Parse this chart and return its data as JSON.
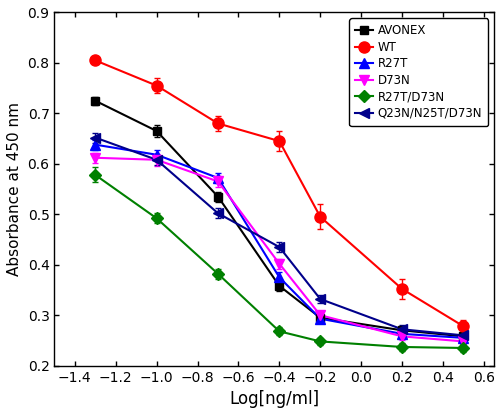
{
  "series": [
    {
      "label": "AVONEX",
      "color": "#000000",
      "marker": "s",
      "markersize": 6,
      "x": [
        -1.3,
        -1.0,
        -0.7,
        -0.4,
        -0.2,
        0.2,
        0.5
      ],
      "y": [
        0.725,
        0.665,
        0.535,
        0.358,
        0.295,
        0.27,
        0.258
      ],
      "yerr": [
        0.008,
        0.012,
        0.01,
        0.01,
        0.008,
        0.007,
        0.007
      ],
      "ec50_guess": -0.5,
      "hill_guess": 2.5
    },
    {
      "label": "WT",
      "color": "#ff0000",
      "marker": "o",
      "markersize": 8,
      "x": [
        -1.3,
        -1.0,
        -0.7,
        -0.4,
        -0.2,
        0.2,
        0.5
      ],
      "y": [
        0.805,
        0.755,
        0.68,
        0.645,
        0.495,
        0.352,
        0.278
      ],
      "yerr": [
        0.005,
        0.015,
        0.015,
        0.02,
        0.025,
        0.02,
        0.012
      ],
      "ec50_guess": 0.1,
      "hill_guess": 2.5
    },
    {
      "label": "R27T",
      "color": "#0000ff",
      "marker": "^",
      "markersize": 7,
      "x": [
        -1.3,
        -1.0,
        -0.7,
        -0.4,
        -0.2,
        0.2,
        0.5
      ],
      "y": [
        0.638,
        0.618,
        0.572,
        0.375,
        0.293,
        0.263,
        0.255
      ],
      "yerr": [
        0.01,
        0.01,
        0.01,
        0.01,
        0.008,
        0.007,
        0.006
      ],
      "ec50_guess": -0.55,
      "hill_guess": 2.5
    },
    {
      "label": "D73N",
      "color": "#ff00ff",
      "marker": "v",
      "markersize": 7,
      "x": [
        -1.3,
        -1.0,
        -0.7,
        -0.4,
        -0.2,
        0.2,
        0.5
      ],
      "y": [
        0.612,
        0.608,
        0.565,
        0.402,
        0.3,
        0.258,
        0.248
      ],
      "yerr": [
        0.01,
        0.012,
        0.01,
        0.01,
        0.007,
        0.007,
        0.006
      ],
      "ec50_guess": -0.6,
      "hill_guess": 2.5
    },
    {
      "label": "R27T/D73N",
      "color": "#008000",
      "marker": "D",
      "markersize": 6,
      "x": [
        -1.3,
        -1.0,
        -0.7,
        -0.4,
        -0.2,
        0.2,
        0.5
      ],
      "y": [
        0.578,
        0.492,
        0.382,
        0.268,
        0.248,
        0.237,
        0.235
      ],
      "yerr": [
        0.015,
        0.01,
        0.01,
        0.008,
        0.007,
        0.007,
        0.007
      ],
      "ec50_guess": -0.85,
      "hill_guess": 2.0
    },
    {
      "label": "Q23N/N25T/D73N",
      "color": "#00008b",
      "marker": "<",
      "markersize": 7,
      "x": [
        -1.3,
        -1.0,
        -0.7,
        -0.4,
        -0.2,
        0.2,
        0.5
      ],
      "y": [
        0.652,
        0.608,
        0.502,
        0.435,
        0.332,
        0.272,
        0.26
      ],
      "yerr": [
        0.01,
        0.01,
        0.01,
        0.01,
        0.008,
        0.008,
        0.007
      ],
      "ec50_guess": -0.4,
      "hill_guess": 2.0
    }
  ],
  "xlabel": "Log[ng/ml]",
  "ylabel": "Absorbance at 450 nm",
  "xlim": [
    -1.5,
    0.65
  ],
  "ylim": [
    0.2,
    0.9
  ],
  "xticks": [
    -1.4,
    -1.2,
    -1.0,
    -0.8,
    -0.6,
    -0.4,
    -0.2,
    0.0,
    0.2,
    0.4,
    0.6
  ],
  "yticks": [
    0.2,
    0.3,
    0.4,
    0.5,
    0.6,
    0.7,
    0.8,
    0.9
  ],
  "legend_loc": "upper right",
  "figsize": [
    5.03,
    4.15
  ],
  "dpi": 100
}
